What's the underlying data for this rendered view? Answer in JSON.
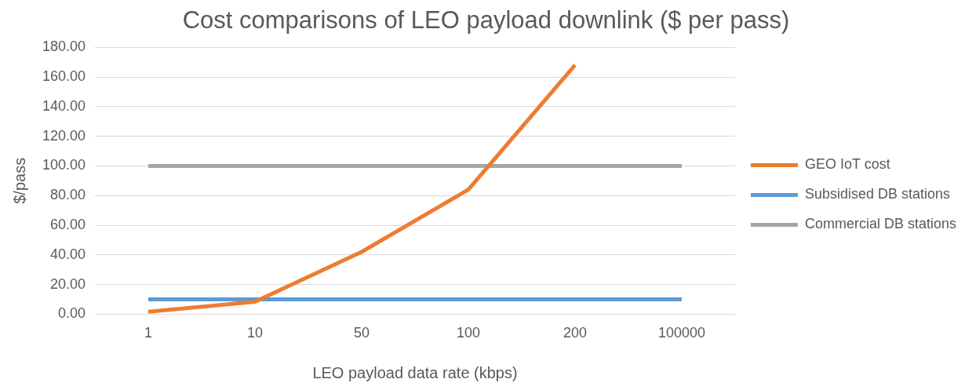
{
  "chart_data": {
    "type": "line",
    "title": "Cost comparisons of LEO payload downlink ($ per pass)",
    "xlabel": "LEO payload data rate (kbps)",
    "ylabel": "$/pass",
    "categories": [
      "1",
      "10",
      "50",
      "100",
      "200",
      "100000"
    ],
    "series": [
      {
        "name": "GEO IoT cost",
        "color": "#ed7d31",
        "values": [
          1.7,
          8.4,
          42,
          84,
          168,
          null
        ]
      },
      {
        "name": "Subsidised DB stations",
        "color": "#5b9bd5",
        "values": [
          10,
          10,
          10,
          10,
          10,
          10
        ]
      },
      {
        "name": "Commercial DB stations",
        "color": "#a5a5a5",
        "values": [
          100,
          100,
          100,
          100,
          100,
          100
        ]
      }
    ],
    "ylim": [
      0,
      180
    ],
    "yticks": [
      {
        "value": 0,
        "label": "0.00"
      },
      {
        "value": 20,
        "label": "20.00"
      },
      {
        "value": 40,
        "label": "40.00"
      },
      {
        "value": 60,
        "label": "60.00"
      },
      {
        "value": 80,
        "label": "80.00"
      },
      {
        "value": 100,
        "label": "100.00"
      },
      {
        "value": 120,
        "label": "120.00"
      },
      {
        "value": 140,
        "label": "140.00"
      },
      {
        "value": 160,
        "label": "160.00"
      },
      {
        "value": 180,
        "label": "180.00"
      }
    ],
    "grid": "y",
    "legend": "right",
    "marker": "none",
    "line_style": "solid"
  }
}
